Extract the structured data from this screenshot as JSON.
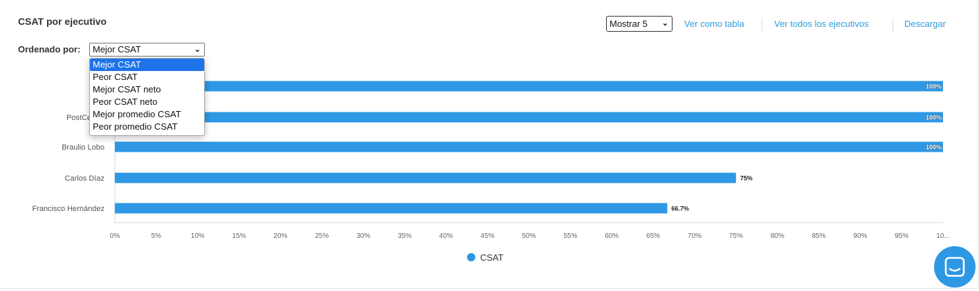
{
  "header": {
    "title": "CSAT por ejecutivo",
    "sort_label": "Ordenado por:",
    "sort_selected": "Mejor CSAT",
    "show_selected": "Mostrar 5",
    "links": [
      "Ver como tabla",
      "Ver todos los ejecutivos",
      "Descargar"
    ]
  },
  "sort_options": [
    "Mejor CSAT",
    "Peor CSAT",
    "Mejor CSAT neto",
    "Peor CSAT neto",
    "Mejor promedio CSAT",
    "Peor promedio CSAT"
  ],
  "colors": {
    "bar": "#2e98e4",
    "link": "#2d9cdb",
    "selected_option": "#1e73e8"
  },
  "icons": {
    "chat": "chat-bubble-icon",
    "dropdown": "chevron-down-icon"
  },
  "chart_data": {
    "type": "bar",
    "orientation": "horizontal",
    "categories": [
      "",
      "PostCenter",
      "Braulio Lobo",
      "Carlos Díaz",
      "Francisco Hernández"
    ],
    "series": [
      {
        "name": "CSAT",
        "values": [
          100,
          100,
          100,
          75,
          66.7
        ]
      }
    ],
    "data_labels": [
      "100%",
      "100%",
      "100%",
      "75%",
      "66.7%"
    ],
    "xlim": [
      0,
      100
    ],
    "x_ticks": [
      "0%",
      "5%",
      "10%",
      "15%",
      "20%",
      "25%",
      "30%",
      "35%",
      "40%",
      "45%",
      "50%",
      "55%",
      "60%",
      "65%",
      "70%",
      "75%",
      "80%",
      "85%",
      "90%",
      "95%",
      "10..."
    ],
    "legend": "bottom-center",
    "grid": false
  }
}
